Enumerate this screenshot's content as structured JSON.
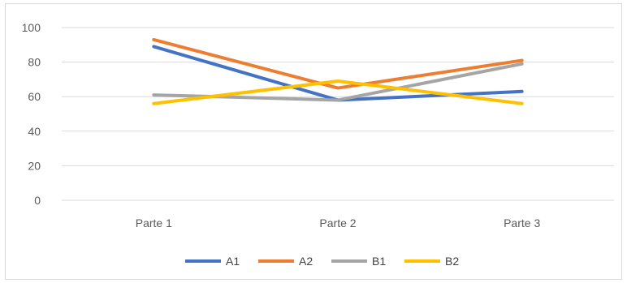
{
  "chart_data": {
    "type": "line",
    "categories": [
      "Parte 1",
      "Parte 2",
      "Parte 3"
    ],
    "series": [
      {
        "name": "A1",
        "color": "#4472C4",
        "values": [
          89,
          58,
          63
        ]
      },
      {
        "name": "A2",
        "color": "#ED7D31",
        "values": [
          93,
          65,
          81
        ]
      },
      {
        "name": "B1",
        "color": "#A5A5A5",
        "values": [
          61,
          58,
          79
        ]
      },
      {
        "name": "B2",
        "color": "#FFC000",
        "values": [
          56,
          69,
          56
        ]
      }
    ],
    "yticks": [
      "0",
      "20",
      "40",
      "60",
      "80",
      "100"
    ],
    "ylim": [
      0,
      100
    ],
    "grid": true,
    "legend_position": "bottom",
    "title": "",
    "xlabel": "",
    "ylabel": ""
  }
}
